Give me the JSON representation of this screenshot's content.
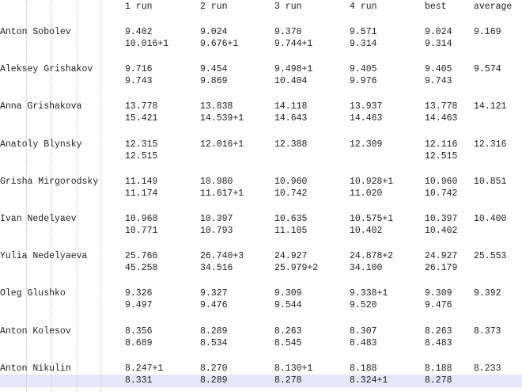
{
  "headers": [
    "1 run",
    "2 run",
    "3 run",
    "4 run",
    "best",
    "average"
  ],
  "highlight_color": "#e6e6f8",
  "rows": [
    {
      "name": "Anton Sobolev",
      "line1": [
        "9.402",
        "9.024",
        "9.370",
        "9.571",
        "9.024",
        "9.169"
      ],
      "line2": [
        "10.016+1",
        "9.676+1",
        "9.744+1",
        "9.314",
        "9.314",
        ""
      ]
    },
    {
      "name": "Aleksey Grishakov",
      "line1": [
        "9.716",
        "9.454",
        "9.498+1",
        "9.405",
        "9.405",
        "9.574"
      ],
      "line2": [
        "9.743",
        "9.869",
        "10.404",
        "9.976",
        "9.743",
        ""
      ]
    },
    {
      "name": "Anna Grishakova",
      "line1": [
        "13.778",
        "13.838",
        "14.118",
        "13.937",
        "13.778",
        "14.121"
      ],
      "line2": [
        "15.421",
        "14.539+1",
        "14.643",
        "14.463",
        "14.463",
        ""
      ]
    },
    {
      "name": "Anatoly Blynsky",
      "line1": [
        "12.315",
        "12.016+1",
        "12.388",
        "12.309",
        "12.116",
        "12.316"
      ],
      "line2": [
        "12.515",
        "",
        "",
        "",
        "12.515",
        ""
      ]
    },
    {
      "name": "Grisha Mirgorodsky",
      "line1": [
        "11.149",
        "10.980",
        "10.960",
        "10.928+1",
        "10.960",
        "10.851"
      ],
      "line2": [
        "11.174",
        "11.617+1",
        "10.742",
        "11.020",
        "10.742",
        ""
      ]
    },
    {
      "name": "Ivan Nedelyaev",
      "line1": [
        "10.968",
        "10.397",
        "10.635",
        "10.575+1",
        "10.397",
        "10.400"
      ],
      "line2": [
        "10.771",
        "10.793",
        "11.105",
        "10.402",
        "10.402",
        ""
      ]
    },
    {
      "name": "Yulia Nedelyaeva",
      "line1": [
        "25.766",
        "26.740+3",
        "24.927",
        "24.878+2",
        "24.927",
        "25.553"
      ],
      "line2": [
        "45.258",
        "34.516",
        "25.979+2",
        "34.100",
        "26.179",
        ""
      ]
    },
    {
      "name": "Oleg Glushko",
      "line1": [
        "9.326",
        "9.327",
        "9.309",
        "9.338+1",
        "9.309",
        "9.392"
      ],
      "line2": [
        "9.497",
        "9.476",
        "9.544",
        "9.520",
        "9.476",
        ""
      ]
    },
    {
      "name": "Anton Kolesov",
      "line1": [
        "8.356",
        "8.289",
        "8.263",
        "8.307",
        "8.263",
        "8.373"
      ],
      "line2": [
        "8.689",
        "8.534",
        "8.545",
        "8.483",
        "8.483",
        ""
      ]
    },
    {
      "name": "Anton Nikulin",
      "line1": [
        "8.247+1",
        "8.270",
        "8.130+1",
        "8.188",
        "8.188",
        "8.233"
      ],
      "line2": [
        "8.331",
        "8.289",
        "8.278",
        "8.324+1",
        "8.278",
        ""
      ]
    }
  ]
}
